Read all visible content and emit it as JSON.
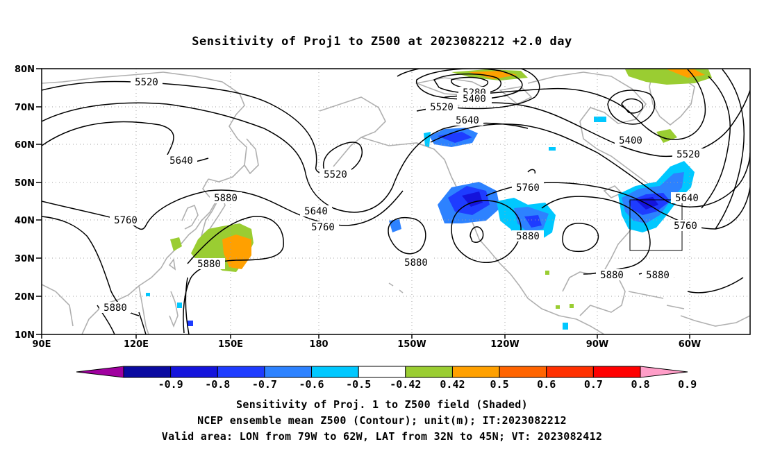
{
  "title": "Sensitivity of Proj1 to Z500 at 2023082212 +2.0 day",
  "lat_labels": [
    "80N",
    "70N",
    "60N",
    "50N",
    "40N",
    "30N",
    "20N",
    "10N"
  ],
  "lon_labels": [
    "90E",
    "120E",
    "150E",
    "180",
    "150W",
    "120W",
    "90W",
    "60W"
  ],
  "contour_labels": [
    {
      "text": "5520"
    },
    {
      "text": "5640"
    },
    {
      "text": "5520"
    },
    {
      "text": "5640"
    },
    {
      "text": "5760"
    },
    {
      "text": "5880"
    },
    {
      "text": "5760"
    },
    {
      "text": "5880"
    },
    {
      "text": "5880"
    },
    {
      "text": "5280"
    },
    {
      "text": "5400"
    },
    {
      "text": "5520"
    },
    {
      "text": "5640"
    },
    {
      "text": "5760"
    },
    {
      "text": "5880"
    },
    {
      "text": "5400"
    },
    {
      "text": "5520"
    },
    {
      "text": "5640"
    },
    {
      "text": "5760"
    },
    {
      "text": "5880"
    },
    {
      "text": "5880"
    }
  ],
  "colorbar": {
    "colors": [
      "#a0009f",
      "#0a0aa0",
      "#1414dc",
      "#1e3cff",
      "#2d82ff",
      "#00c8ff",
      "#ffffff",
      "#9acd32",
      "#ffa000",
      "#ff6400",
      "#ff3000",
      "#ff0000",
      "#ff9ec8"
    ],
    "tick_labels": [
      "-0.9",
      "-0.8",
      "-0.7",
      "-0.6",
      "-0.5",
      "-0.42",
      "0.42",
      "0.5",
      "0.6",
      "0.7",
      "0.8",
      "0.9"
    ]
  },
  "valid_area_box": {
    "lon_from": "79W",
    "lon_to": "62W",
    "lat_from": "32N",
    "lat_to": "45N"
  },
  "captions": {
    "line1": "Sensitivity of Proj. 1 to Z500 field (Shaded)",
    "line2": "NCEP ensemble mean Z500 (Contour); unit(m); IT:2023082212",
    "line3": "Valid area: LON from 79W to 62W, LAT from 32N to 45N; VT: 2023082412"
  }
}
